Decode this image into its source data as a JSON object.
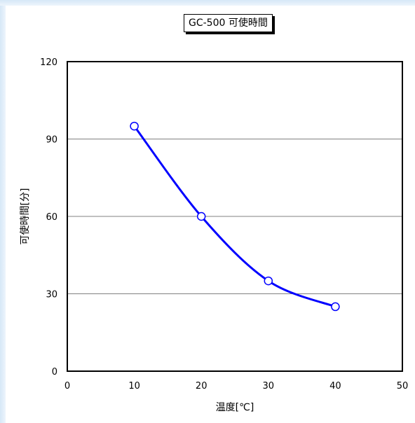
{
  "chart_data": {
    "type": "line",
    "title": "GC-500  可使時間",
    "xlabel": "温度[℃]",
    "ylabel": "可使時間[分]",
    "xlim": [
      0,
      50
    ],
    "ylim": [
      0,
      120
    ],
    "x_ticks": [
      0,
      10,
      20,
      30,
      40,
      50
    ],
    "y_ticks": [
      0,
      30,
      60,
      90,
      120
    ],
    "grid": "horizontal",
    "legend": "none",
    "series": [
      {
        "x": [
          10,
          20,
          30,
          40
        ],
        "values": [
          95,
          60,
          35,
          25
        ],
        "color": "#0000ff",
        "marker": "open-circle",
        "smooth": true
      }
    ]
  }
}
